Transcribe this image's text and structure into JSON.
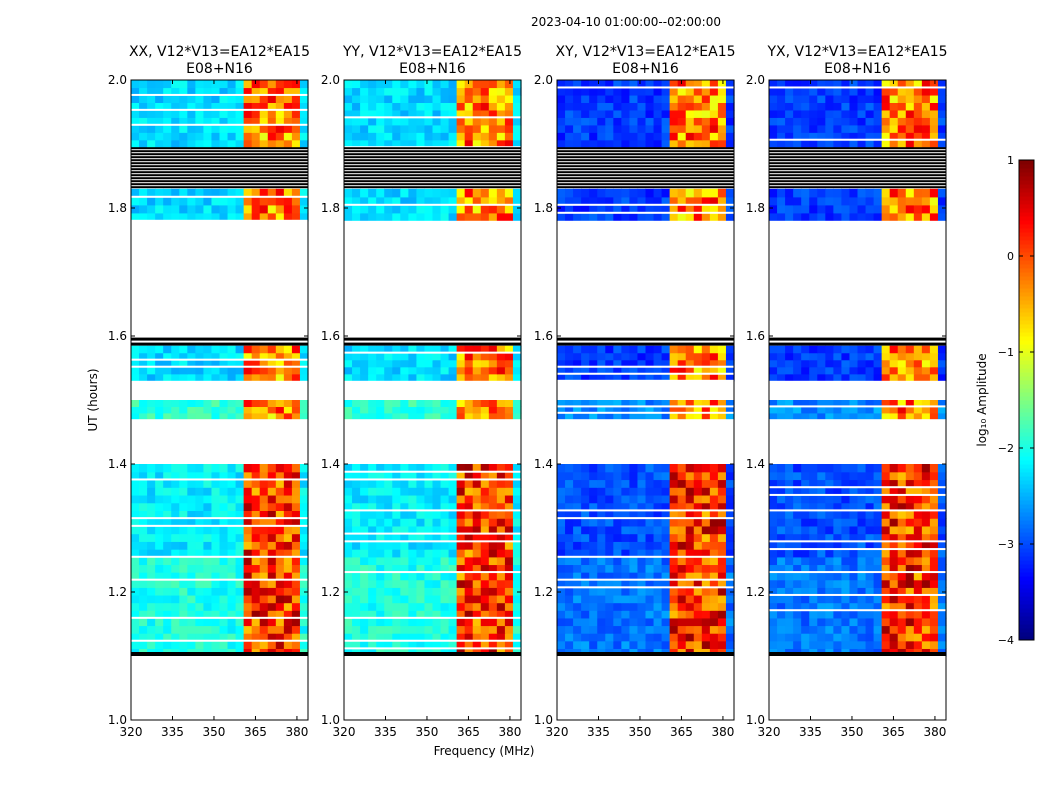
{
  "figure": {
    "suptitle": "2023-04-10  01:00:00--02:00:00",
    "xlabel": "Frequency (MHz)",
    "ylabel": "UT (hours)"
  },
  "colorbar": {
    "label": "log₁₀ Amplitude",
    "range": [
      -4,
      1
    ],
    "ticks": [
      1,
      0,
      -1,
      -2,
      -3,
      -4
    ],
    "tick_labels": [
      "1",
      "0",
      "−1",
      "−2",
      "−3",
      "−4"
    ],
    "colormap": "jet"
  },
  "chart_data": {
    "type": "heatmap",
    "panels": [
      {
        "title_line1": "XX, V12*V13=EA12*EA15",
        "title_line2": "E08+N16",
        "pol": "XX",
        "bg_level": -2.3
      },
      {
        "title_line1": "YY, V12*V13=EA12*EA15",
        "title_line2": "E08+N16",
        "pol": "YY",
        "bg_level": -2.3
      },
      {
        "title_line1": "XY, V12*V13=EA12*EA15",
        "title_line2": "E08+N16",
        "pol": "XY",
        "bg_level": -3.1
      },
      {
        "title_line1": "YX, V12*V13=EA12*EA15",
        "title_line2": "E08+N16",
        "pol": "YX",
        "bg_level": -3.1
      }
    ],
    "x_range": [
      320,
      384
    ],
    "x_ticks": [
      320,
      335,
      350,
      365,
      380
    ],
    "x_tick_labels": [
      "320",
      "335",
      "350",
      "365",
      "380"
    ],
    "y_range": [
      1.0,
      2.0
    ],
    "y_ticks": [
      1.0,
      1.2,
      1.4,
      1.6,
      1.8,
      2.0
    ],
    "y_tick_labels": [
      "1.0",
      "1.2",
      "1.4",
      "1.6",
      "1.8",
      "2.0"
    ],
    "rfi_band_mhz": [
      360,
      380
    ],
    "rfi_level": [
      -1.0,
      0.5
    ],
    "data_segments_ut": [
      {
        "from": 1.1,
        "to": 1.255,
        "level_offset": 0.3
      },
      {
        "from": 1.255,
        "to": 1.4,
        "level_offset": 0.1
      },
      {
        "from": 1.47,
        "to": 1.5,
        "level_offset": 0.4
      },
      {
        "from": 1.53,
        "to": 1.585,
        "level_offset": 0.0
      },
      {
        "from": 1.78,
        "to": 1.83,
        "level_offset": 0.0
      },
      {
        "from": 1.895,
        "to": 2.0,
        "level_offset": 0.0
      }
    ],
    "flagged_ut": [
      {
        "from": 1.0,
        "to": 1.1,
        "kind": "blank"
      },
      {
        "from": 1.4,
        "to": 1.47,
        "kind": "blank"
      },
      {
        "from": 1.5,
        "to": 1.53,
        "kind": "blank"
      },
      {
        "from": 1.585,
        "to": 1.78,
        "kind": "mixed"
      },
      {
        "from": 1.83,
        "to": 1.895,
        "kind": "black"
      }
    ]
  }
}
